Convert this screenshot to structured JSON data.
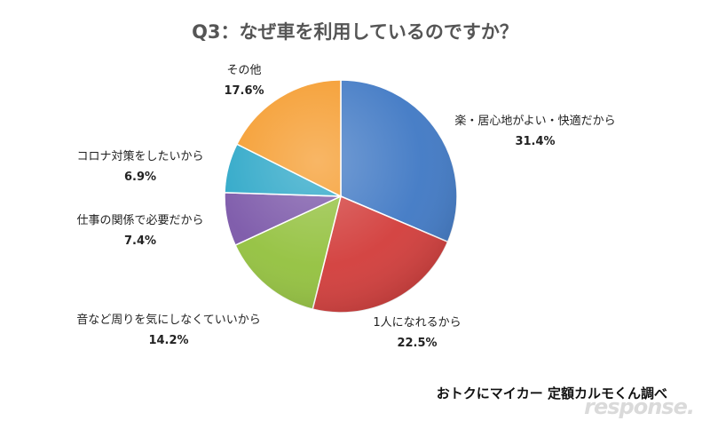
{
  "chart_data": {
    "type": "pie",
    "title": "Q3：なぜ車を利用しているのですか？",
    "slices": [
      {
        "label": "楽・居心地がよい・快適だから",
        "value": 31.4,
        "value_label": "31.4%",
        "color": "#3f78c4"
      },
      {
        "label": "1人になれるから",
        "value": 22.5,
        "value_label": "22.5%",
        "color": "#d23c3a"
      },
      {
        "label": "音など周りを気にしなくていいから",
        "value": 14.2,
        "value_label": "14.2%",
        "color": "#93c13e"
      },
      {
        "label": "仕事の関係で必要だから",
        "value": 7.4,
        "value_label": "7.4%",
        "color": "#7a56a8"
      },
      {
        "label": "コロナ対策をしたいから",
        "value": 6.9,
        "value_label": "6.9%",
        "color": "#2aa6c7"
      },
      {
        "label": "その他",
        "value": 17.6,
        "value_label": "17.6%",
        "color": "#f59a2a"
      }
    ]
  },
  "source_note": "おトクにマイカー 定額カルモくん調べ",
  "watermark": "response."
}
